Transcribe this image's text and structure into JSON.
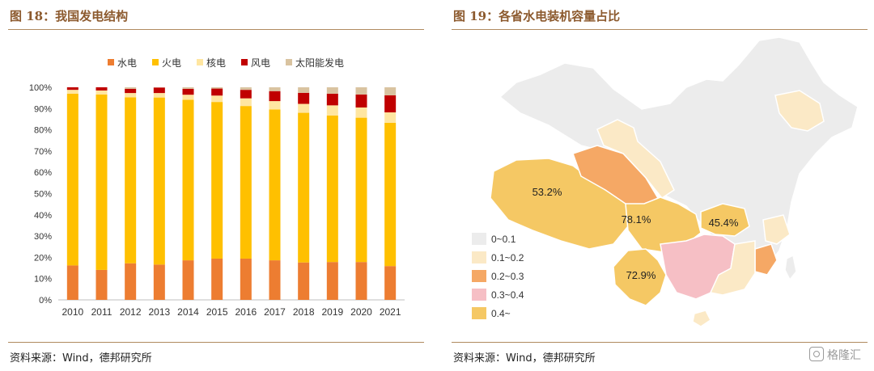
{
  "left": {
    "title": "图 18：我国发电结构",
    "source": "资料来源：Wind，德邦研究所"
  },
  "right": {
    "title": "图 19：各省水电装机容量占比",
    "source": "资料来源：Wind，德邦研究所",
    "labels": [
      {
        "name": "xizang-label",
        "text": "53.2%"
      },
      {
        "name": "sichuan-label",
        "text": "78.1%"
      },
      {
        "name": "hubei-label",
        "text": "45.4%"
      },
      {
        "name": "yunnan-label",
        "text": "72.9%"
      }
    ],
    "legend": [
      {
        "label": "0~0.1",
        "color": "#ececec"
      },
      {
        "label": "0.1~0.2",
        "color": "#fbe9c6"
      },
      {
        "label": "0.2~0.3",
        "color": "#f5a865"
      },
      {
        "label": "0.3~0.4",
        "color": "#f6bfc5"
      },
      {
        "label": "0.4~",
        "color": "#f5c864"
      }
    ]
  },
  "watermark": "格隆汇",
  "chart_data": {
    "type": "bar",
    "stacked": true,
    "percent": true,
    "categories": [
      "2010",
      "2011",
      "2012",
      "2013",
      "2014",
      "2015",
      "2016",
      "2017",
      "2018",
      "2019",
      "2020",
      "2021"
    ],
    "series": [
      {
        "name": "水电",
        "color": "#ed7d31",
        "values": [
          16.2,
          14.1,
          17.2,
          16.6,
          18.6,
          19.4,
          19.4,
          18.6,
          17.6,
          17.8,
          17.8,
          15.9
        ]
      },
      {
        "name": "火电",
        "color": "#ffc000",
        "values": [
          80.8,
          82.5,
          78.1,
          78.6,
          75.5,
          73.7,
          71.8,
          71.0,
          70.4,
          68.9,
          67.9,
          67.4
        ]
      },
      {
        "name": "核电",
        "color": "#ffe6a1",
        "values": [
          1.8,
          1.9,
          2.0,
          2.1,
          2.4,
          3.0,
          3.6,
          3.9,
          4.2,
          4.8,
          4.8,
          4.9
        ]
      },
      {
        "name": "风电",
        "color": "#c00000",
        "values": [
          1.2,
          1.5,
          2.0,
          2.6,
          2.8,
          3.3,
          4.0,
          4.7,
          5.2,
          5.5,
          6.1,
          8.0
        ]
      },
      {
        "name": "太阳能发电",
        "color": "#d9c3a0",
        "values": [
          0.0,
          0.0,
          0.7,
          0.1,
          0.7,
          0.6,
          1.2,
          1.8,
          2.6,
          3.0,
          3.4,
          3.8
        ]
      }
    ],
    "ylim": [
      0,
      100
    ],
    "yticks": [
      "0%",
      "10%",
      "20%",
      "30%",
      "40%",
      "50%",
      "60%",
      "70%",
      "80%",
      "90%",
      "100%"
    ],
    "legend_position": "top",
    "grid": false
  }
}
